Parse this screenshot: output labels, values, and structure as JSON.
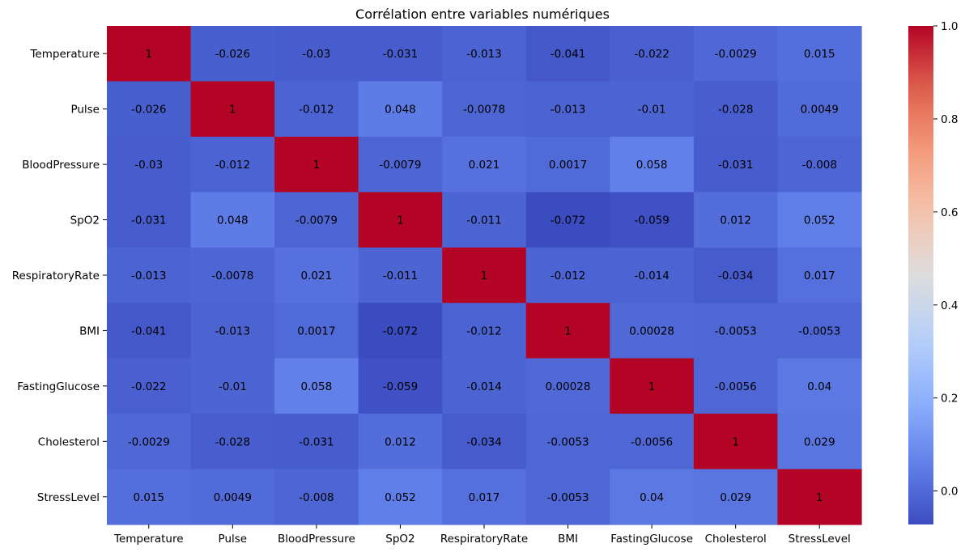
{
  "chart_data": {
    "type": "heatmap",
    "title": "Corrélation entre variables numériques",
    "xlabel": "",
    "ylabel": "",
    "variables": [
      "Temperature",
      "Pulse",
      "BloodPressure",
      "SpO2",
      "RespiratoryRate",
      "BMI",
      "FastingGlucose",
      "Cholesterol",
      "StressLevel"
    ],
    "values": [
      [
        1,
        -0.026,
        -0.03,
        -0.031,
        -0.013,
        -0.041,
        -0.022,
        -0.0029,
        0.015
      ],
      [
        -0.026,
        1,
        -0.012,
        0.048,
        -0.0078,
        -0.013,
        -0.01,
        -0.028,
        0.0049
      ],
      [
        -0.03,
        -0.012,
        1,
        -0.0079,
        0.021,
        0.0017,
        0.058,
        -0.031,
        -0.008
      ],
      [
        -0.031,
        0.048,
        -0.0079,
        1,
        -0.011,
        -0.072,
        -0.059,
        0.012,
        0.052
      ],
      [
        -0.013,
        -0.0078,
        0.021,
        -0.011,
        1,
        -0.012,
        -0.014,
        -0.034,
        0.017
      ],
      [
        -0.041,
        -0.013,
        0.0017,
        -0.072,
        -0.012,
        1,
        0.00028,
        -0.0053,
        -0.0053
      ],
      [
        -0.022,
        -0.01,
        0.058,
        -0.059,
        -0.014,
        0.00028,
        1,
        -0.0056,
        0.04
      ],
      [
        -0.0029,
        -0.028,
        -0.031,
        0.012,
        -0.034,
        -0.0053,
        -0.0056,
        1,
        0.029
      ],
      [
        0.015,
        0.0049,
        -0.008,
        0.052,
        0.017,
        -0.0053,
        0.04,
        0.029,
        1
      ]
    ],
    "colormap": "coolwarm",
    "colorbar": {
      "min": -0.072,
      "max": 1.0,
      "ticks": [
        0.0,
        0.2,
        0.4,
        0.6,
        0.8,
        1.0
      ],
      "tick_labels": [
        "0.0",
        "0.2",
        "0.4",
        "0.6",
        "0.8",
        "1.0"
      ]
    },
    "annotations": true,
    "grid": false
  }
}
